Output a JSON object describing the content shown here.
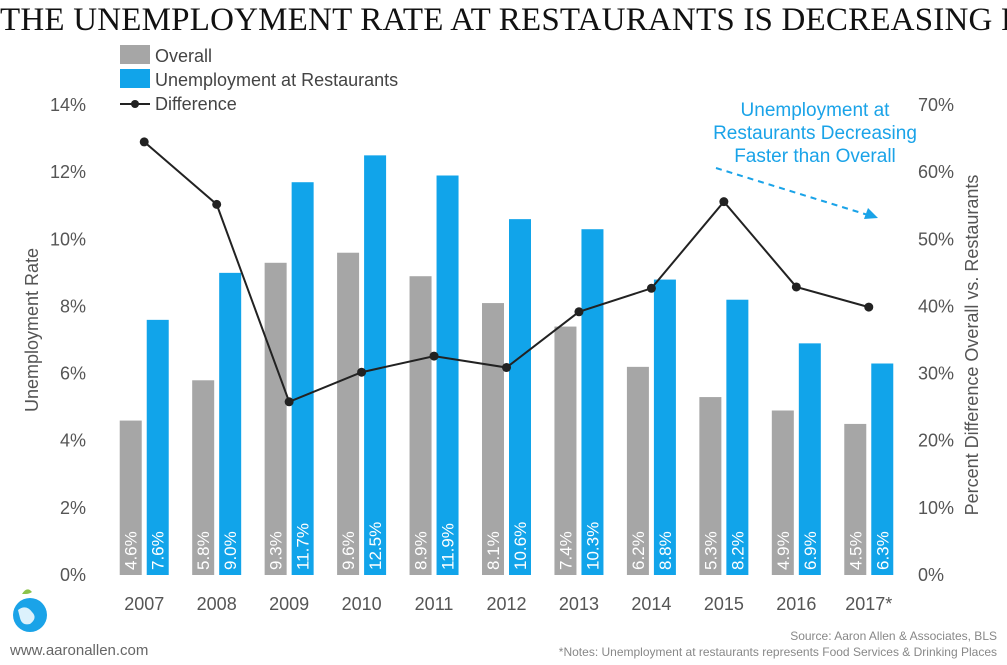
{
  "title": "THE UNEMPLOYMENT RATE AT RESTAURANTS IS DECREASING FAST",
  "colors": {
    "overall": "#a6a6a6",
    "restaurants": "#11a4ea",
    "difference": "#222222",
    "annotation": "#1aa3e8"
  },
  "chart_data": {
    "type": "bar",
    "categories": [
      "2007",
      "2008",
      "2009",
      "2010",
      "2011",
      "2012",
      "2013",
      "2014",
      "2015",
      "2016",
      "2017*"
    ],
    "series": [
      {
        "name": "Overall",
        "type": "bar",
        "axis": "left",
        "values": [
          4.6,
          5.8,
          9.3,
          9.6,
          8.9,
          8.1,
          7.4,
          6.2,
          5.3,
          4.9,
          4.5
        ],
        "labels": [
          "4.6%",
          "5.8%",
          "9.3%",
          "9.6%",
          "8.9%",
          "8.1%",
          "7.4%",
          "6.2%",
          "5.3%",
          "4.9%",
          "4.5%"
        ]
      },
      {
        "name": "Unemployment at Restaurants",
        "type": "bar",
        "axis": "left",
        "values": [
          7.6,
          9.0,
          11.7,
          12.5,
          11.9,
          10.6,
          10.3,
          8.8,
          8.2,
          6.9,
          6.3
        ],
        "labels": [
          "7.6%",
          "9.0%",
          "11.7%",
          "12.5%",
          "11.9%",
          "10.6%",
          "10.3%",
          "8.8%",
          "8.2%",
          "6.9%",
          "6.3%"
        ]
      },
      {
        "name": "Difference",
        "type": "line",
        "axis": "right",
        "values": [
          64.5,
          55.2,
          25.8,
          30.2,
          32.6,
          30.9,
          39.2,
          42.7,
          55.6,
          42.9,
          39.9
        ]
      }
    ],
    "ylabel": "Unemployment Rate",
    "ylim": [
      0,
      14
    ],
    "yticks": [
      "0%",
      "2%",
      "4%",
      "6%",
      "8%",
      "10%",
      "12%",
      "14%"
    ],
    "y2label": "Percent Difference Overall vs. Restaurants",
    "y2lim": [
      0,
      70
    ],
    "y2ticks": [
      "0%",
      "10%",
      "20%",
      "30%",
      "40%",
      "50%",
      "60%",
      "70%"
    ],
    "legend_position": "top-left",
    "annotation": [
      "Unemployment at",
      "Restaurants Decreasing",
      "Faster than Overall"
    ]
  },
  "footer": {
    "website": "www.aaronallen.com",
    "source": "Source: Aaron Allen & Associates, BLS",
    "note": "*Notes:  Unemployment at restaurants represents Food Services & Drinking Places"
  },
  "logo": {
    "icon": "globe-bird-logo"
  }
}
